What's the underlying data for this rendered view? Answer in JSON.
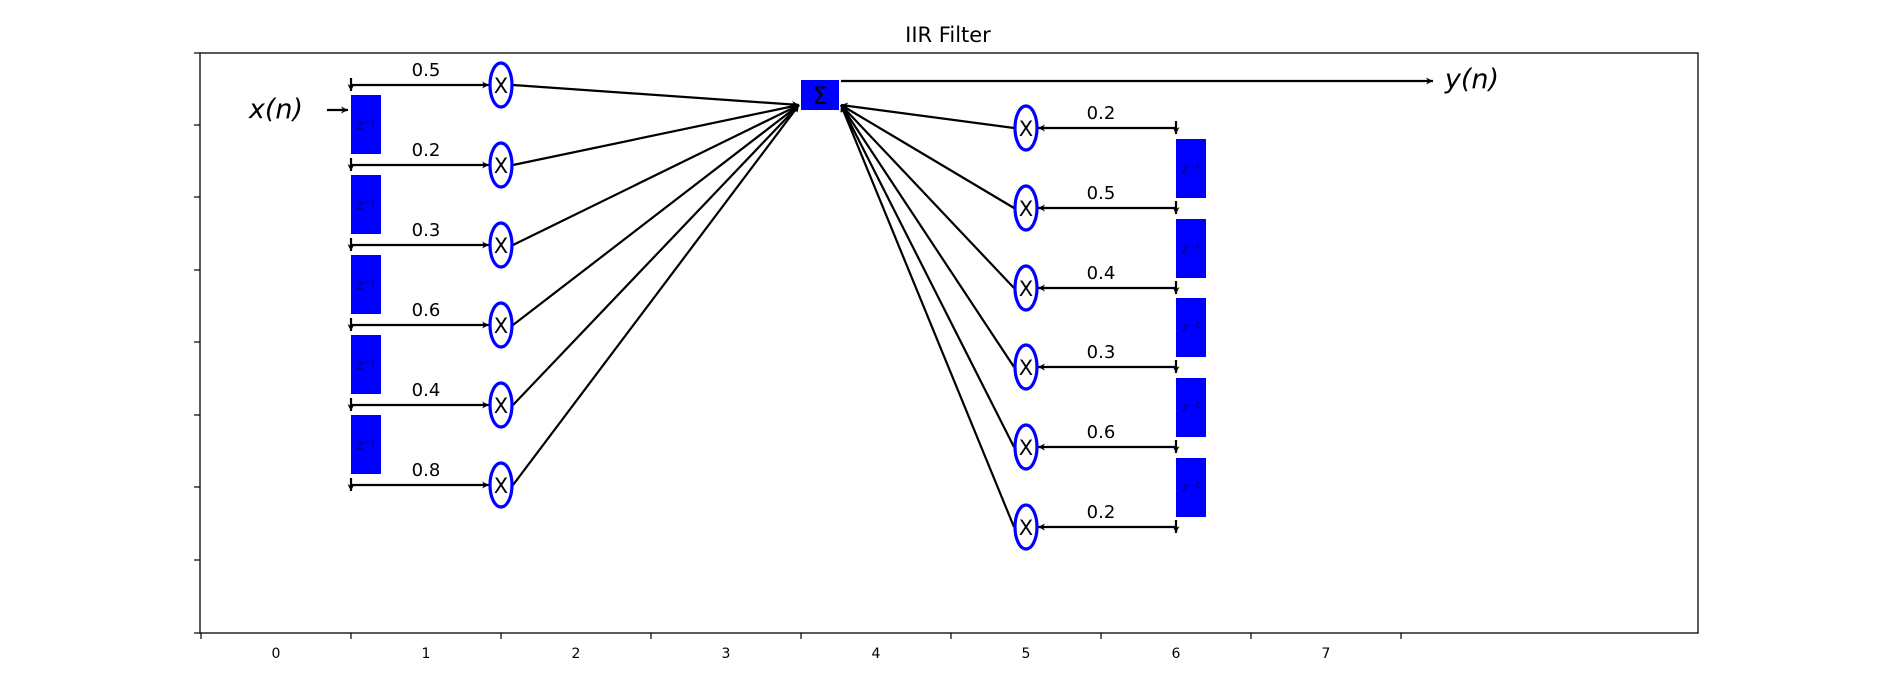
{
  "title": "IIR Filter",
  "input_label": "x(n)",
  "output_label": "y(n)",
  "sum_symbol": "Σ",
  "multiplier_symbol": "X",
  "delay_label": "z⁻¹",
  "x_tick_labels": [
    "0",
    "1",
    "2",
    "3",
    "4",
    "5",
    "6",
    "7"
  ],
  "feedforward_coefficients": [
    "0.5",
    "0.2",
    "0.3",
    "0.6",
    "0.4",
    "0.8"
  ],
  "feedback_coefficients": [
    "0.2",
    "0.5",
    "0.4",
    "0.3",
    "0.6",
    "0.2"
  ],
  "colors": {
    "delay_block": "#0000ff",
    "sum_block": "#0000ff",
    "multiplier_stroke": "#0000ff",
    "lines": "#000000",
    "background": "#ffffff"
  }
}
